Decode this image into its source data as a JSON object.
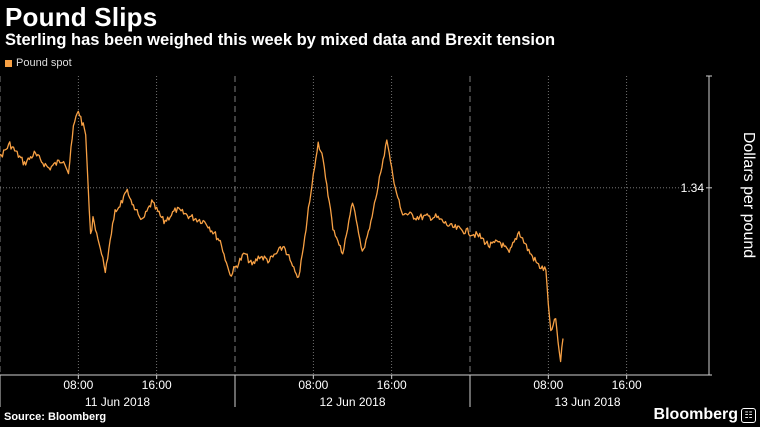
{
  "title": "Pound Slips",
  "subtitle": "Sterling has been weighed this week by mixed data and Brexit tension",
  "source": "Source: Bloomberg",
  "brand": "Bloomberg",
  "colors": {
    "series": "#f7a044",
    "background": "#000000",
    "grid": "#8a8a8a"
  },
  "chart_data": {
    "type": "line",
    "title": "Pound Slips",
    "subtitle": "Sterling has been weighed this week by mixed data and Brexit tension",
    "ylabel": "Dollars per pound",
    "xlabel": "",
    "legend": {
      "position": "top-left",
      "entries": [
        "Pound spot"
      ]
    },
    "grid": true,
    "y_axis_side": "right",
    "ylim": [
      1.3323,
      1.3446
    ],
    "xlim": [
      "2018-06-11 00:00",
      "2018-06-14 00:00"
    ],
    "y_ticks": [
      "1.34"
    ],
    "y_tick_values": [
      1.34
    ],
    "x_tick_labels": [
      "08:00",
      "16:00",
      "08:00",
      "16:00",
      "08:00",
      "16:00"
    ],
    "x_tick_times": [
      "2018-06-11 08:00",
      "2018-06-11 16:00",
      "2018-06-12 08:00",
      "2018-06-12 16:00",
      "2018-06-13 08:00",
      "2018-06-13 16:00"
    ],
    "date_labels": [
      "11 Jun 2018",
      "12 Jun 2018",
      "13 Jun 2018"
    ],
    "date_label_times": [
      "2018-06-11 12:00",
      "2018-06-12 12:00",
      "2018-06-13 12:00"
    ],
    "day_boundaries": [
      "2018-06-11 00:00",
      "2018-06-12 00:00",
      "2018-06-13 00:00"
    ],
    "series": [
      {
        "name": "Pound spot",
        "color": "#f7a044",
        "x": [
          "2018-06-10 21:00",
          "2018-06-10 23:30",
          "2018-06-11 01:00",
          "2018-06-11 02:30",
          "2018-06-11 03:30",
          "2018-06-11 05:00",
          "2018-06-11 06:30",
          "2018-06-11 07:00",
          "2018-06-11 07:30",
          "2018-06-11 08:00",
          "2018-06-11 08:45",
          "2018-06-11 09:15",
          "2018-06-11 09:30",
          "2018-06-11 10:45",
          "2018-06-11 11:45",
          "2018-06-11 13:00",
          "2018-06-11 14:30",
          "2018-06-11 15:30",
          "2018-06-11 16:45",
          "2018-06-11 18:00",
          "2018-06-11 19:30",
          "2018-06-11 21:00",
          "2018-06-11 22:30",
          "2018-06-11 23:30",
          "2018-06-12 01:00",
          "2018-06-12 01:45",
          "2018-06-12 02:30",
          "2018-06-12 03:30",
          "2018-06-12 05:00",
          "2018-06-12 06:30",
          "2018-06-12 08:00",
          "2018-06-12 08:30",
          "2018-06-12 09:00",
          "2018-06-12 10:00",
          "2018-06-12 11:00",
          "2018-06-12 12:00",
          "2018-06-12 13:00",
          "2018-06-12 13:45",
          "2018-06-12 14:30",
          "2018-06-12 15:30",
          "2018-06-12 16:15",
          "2018-06-12 17:00",
          "2018-06-12 18:30",
          "2018-06-12 20:30",
          "2018-06-12 22:00",
          "2018-06-12 23:45",
          "2018-06-13 01:00",
          "2018-06-13 02:00",
          "2018-06-13 03:00",
          "2018-06-13 04:00",
          "2018-06-13 05:00",
          "2018-06-13 06:00",
          "2018-06-13 07:00",
          "2018-06-13 07:45",
          "2018-06-13 08:15",
          "2018-06-13 08:45",
          "2018-06-13 09:15",
          "2018-06-13 09:30"
        ],
        "values": [
          1.341,
          1.341,
          1.3418,
          1.341,
          1.3414,
          1.3408,
          1.3412,
          1.3406,
          1.3425,
          1.3432,
          1.3422,
          1.338,
          1.3388,
          1.3366,
          1.339,
          1.3398,
          1.3386,
          1.3394,
          1.3386,
          1.3391,
          1.3388,
          1.3386,
          1.3378,
          1.3364,
          1.3373,
          1.3368,
          1.3372,
          1.337,
          1.3376,
          1.3362,
          1.3405,
          1.3418,
          1.3412,
          1.3384,
          1.3372,
          1.3395,
          1.3373,
          1.3384,
          1.3398,
          1.342,
          1.3402,
          1.339,
          1.3388,
          1.3388,
          1.3384,
          1.3382,
          1.338,
          1.3376,
          1.3378,
          1.3373,
          1.3382,
          1.3374,
          1.3368,
          1.3366,
          1.334,
          1.3346,
          1.3328,
          1.3338
        ]
      }
    ]
  }
}
